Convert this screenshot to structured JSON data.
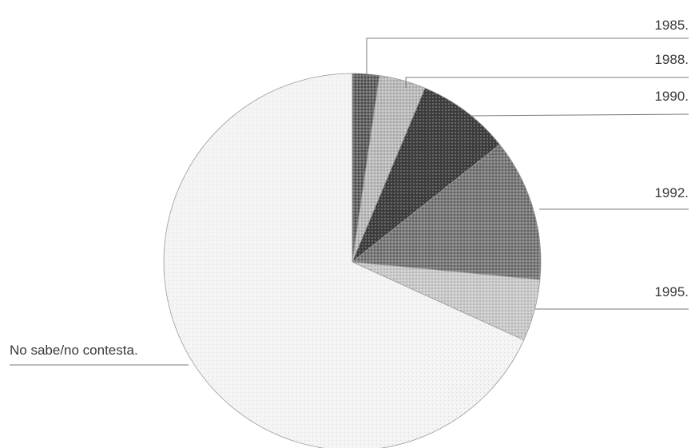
{
  "chart_data": {
    "type": "pie",
    "title": "",
    "start_angle_deg": 0,
    "direction": "clockwise",
    "slices": [
      {
        "label": "1985.",
        "value": 2.3,
        "color": "#5a5a5a",
        "pattern": "dots"
      },
      {
        "label": "1988.",
        "value": 4.0,
        "color": "#b4b4b4",
        "pattern": "dots"
      },
      {
        "label": "1990.",
        "value": 8.0,
        "color": "#333333",
        "pattern": "grid"
      },
      {
        "label": "1992.",
        "value": 12.2,
        "color": "#7a7a7a",
        "pattern": "dots"
      },
      {
        "label": "1995.",
        "value": 5.3,
        "color": "#c4c4c4",
        "pattern": "dots"
      },
      {
        "label": "No sabe/no contesta.",
        "value": 68.2,
        "color": "#f2f2f2",
        "pattern": "dots"
      }
    ]
  }
}
